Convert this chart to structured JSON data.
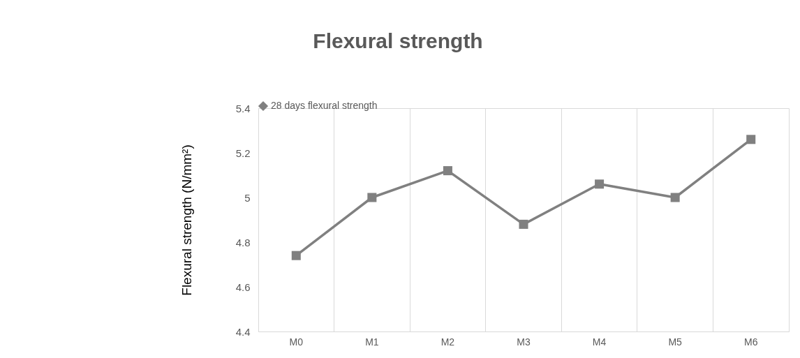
{
  "chart_data": {
    "type": "line",
    "title": "Flexural strength",
    "ylabel": "Flexural strength (N/mm²)",
    "categories": [
      "M0",
      "M1",
      "M2",
      "M3",
      "M4",
      "M5",
      "M6"
    ],
    "series": [
      {
        "name": "28 days flexural strength",
        "color": "#808080",
        "values": [
          4.74,
          5.0,
          5.12,
          4.88,
          5.06,
          5.0,
          5.26
        ]
      }
    ],
    "ylim": [
      4.4,
      5.4
    ],
    "yticks": [
      4.4,
      4.6,
      4.8,
      5,
      5.2,
      5.4
    ],
    "grid": "x",
    "legend": "top",
    "marker": "square",
    "line_style": "solid"
  }
}
